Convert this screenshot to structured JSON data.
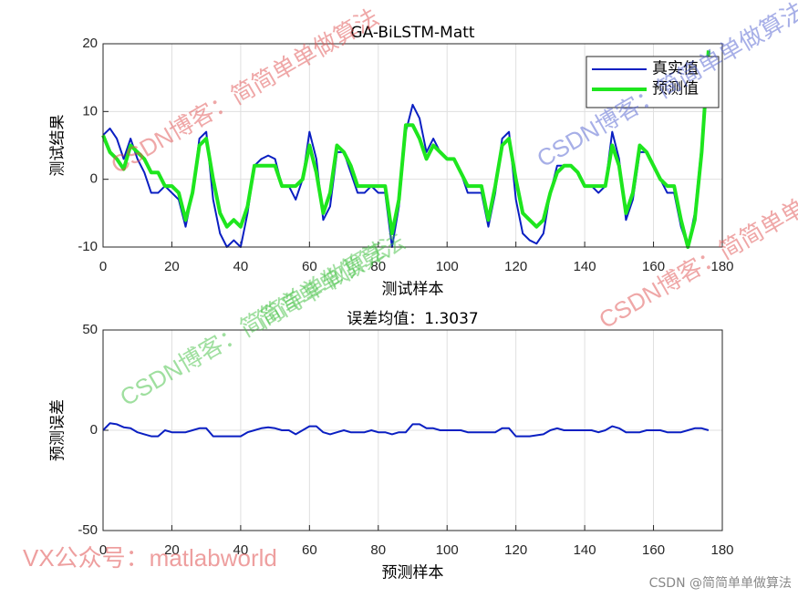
{
  "chart_data": [
    {
      "type": "line",
      "title": "GA-BiLSTM-Matt",
      "xlabel": "测试样本",
      "ylabel": "测试结果",
      "x": [
        0,
        2,
        4,
        6,
        8,
        10,
        12,
        14,
        16,
        18,
        20,
        22,
        24,
        26,
        28,
        30,
        32,
        34,
        36,
        38,
        40,
        42,
        44,
        46,
        48,
        50,
        52,
        54,
        56,
        58,
        60,
        62,
        64,
        66,
        68,
        70,
        72,
        74,
        76,
        78,
        80,
        82,
        84,
        86,
        88,
        90,
        92,
        94,
        96,
        98,
        100,
        102,
        104,
        106,
        108,
        110,
        112,
        114,
        116,
        118,
        120,
        122,
        124,
        126,
        128,
        130,
        132,
        134,
        136,
        138,
        140,
        142,
        144,
        146,
        148,
        150,
        152,
        154,
        156,
        158,
        160,
        162,
        164,
        166,
        168,
        170,
        172,
        174,
        176
      ],
      "series": [
        {
          "name": "真实值",
          "color": "#0a1fc2",
          "width": 2,
          "values": [
            6.5,
            7.5,
            6,
            3,
            6,
            3,
            1,
            -2,
            -2,
            -1,
            -2,
            -3,
            -7,
            -2,
            6,
            7,
            -3,
            -8,
            -10,
            -9,
            -10,
            -5,
            2,
            3,
            3.5,
            3,
            -1,
            -1,
            -3,
            0,
            7,
            3,
            -6,
            -4,
            4,
            4,
            1,
            -2,
            -2,
            -1,
            -2,
            -2,
            -10,
            -4,
            7,
            11,
            9,
            4,
            6,
            4,
            3,
            3,
            1,
            -2,
            -2,
            -2,
            -7,
            -2,
            6,
            7,
            -3,
            -8,
            -9,
            -9.5,
            -8,
            -2,
            2,
            2,
            2,
            1,
            -1,
            -1,
            -2,
            -1,
            7,
            3,
            -6,
            -3,
            4,
            4,
            2,
            0,
            -2,
            -2,
            -7,
            -10,
            -5,
            5,
            19
          ]
        },
        {
          "name": "预测值",
          "color": "#1ee61e",
          "width": 4,
          "values": [
            6.5,
            4,
            3,
            1.5,
            5,
            4,
            3,
            1,
            1,
            -1,
            -1,
            -2,
            -6,
            -2,
            5,
            6,
            0,
            -5,
            -7,
            -6,
            -7,
            -4,
            2,
            2,
            2,
            2,
            -1,
            -1,
            -1,
            0,
            5,
            1,
            -5,
            -2,
            5,
            4,
            2,
            -1,
            -1,
            -1,
            -1,
            -1,
            -8,
            -3,
            8,
            8,
            6,
            3,
            5,
            4,
            3,
            3,
            1,
            -1,
            -1,
            -1,
            -6,
            -1,
            5,
            6,
            0,
            -5,
            -6,
            -7,
            -6,
            -2,
            1,
            2,
            2,
            1,
            -1,
            -1,
            -1,
            -1,
            5,
            2,
            -5,
            -2,
            5,
            4,
            2,
            0,
            -1,
            -1,
            -6,
            -10,
            -6,
            4,
            19
          ]
        }
      ],
      "xlim": [
        0,
        180
      ],
      "xticks": [
        0,
        20,
        40,
        60,
        80,
        100,
        120,
        140,
        160,
        180
      ],
      "ylim": [
        -10,
        20
      ],
      "yticks": [
        -10,
        0,
        10,
        20
      ],
      "grid": true,
      "legend": "upper right"
    },
    {
      "type": "line",
      "title": "误差均值：1.3037",
      "xlabel": "预测样本",
      "ylabel": "预测误差",
      "x": [
        0,
        2,
        4,
        6,
        8,
        10,
        12,
        14,
        16,
        18,
        20,
        22,
        24,
        26,
        28,
        30,
        32,
        34,
        36,
        38,
        40,
        42,
        44,
        46,
        48,
        50,
        52,
        54,
        56,
        58,
        60,
        62,
        64,
        66,
        68,
        70,
        72,
        74,
        76,
        78,
        80,
        82,
        84,
        86,
        88,
        90,
        92,
        94,
        96,
        98,
        100,
        102,
        104,
        106,
        108,
        110,
        112,
        114,
        116,
        118,
        120,
        122,
        124,
        126,
        128,
        130,
        132,
        134,
        136,
        138,
        140,
        142,
        144,
        146,
        148,
        150,
        152,
        154,
        156,
        158,
        160,
        162,
        164,
        166,
        168,
        170,
        172,
        174,
        176
      ],
      "series": [
        {
          "color": "#0a1fc2",
          "width": 2,
          "values": [
            0,
            3.5,
            3,
            1.5,
            1,
            -1,
            -2,
            -3,
            -3,
            0,
            -1,
            -1,
            -1,
            0,
            1,
            1,
            -3,
            -3,
            -3,
            -3,
            -3,
            -1,
            0,
            1,
            1.5,
            1,
            0,
            0,
            -2,
            0,
            2,
            2,
            -1,
            -2,
            -1,
            0,
            -1,
            -1,
            -1,
            0,
            -1,
            -1,
            -2,
            -1,
            -1,
            3,
            3,
            1,
            1,
            0,
            0,
            0,
            0,
            -1,
            -1,
            -1,
            -1,
            -1,
            1,
            1,
            -3,
            -3,
            -3,
            -2.5,
            -2,
            0,
            1,
            0,
            0,
            0,
            0,
            0,
            -1,
            0,
            2,
            1,
            -1,
            -1,
            -1,
            0,
            0,
            0,
            -1,
            -1,
            -1,
            0,
            1,
            1,
            0
          ]
        }
      ],
      "xlim": [
        0,
        180
      ],
      "xticks": [
        0,
        20,
        40,
        60,
        80,
        100,
        120,
        140,
        160,
        180
      ],
      "ylim": [
        -50,
        50
      ],
      "yticks": [
        -50,
        0,
        50
      ],
      "grid": true
    }
  ],
  "watermarks": [
    "CSDN博客：简简单单做算法",
    "CSDN博客：简简单单做算法",
    "CSDN博客：简简单单做算法",
    "简简单单做算法",
    "CSDN博客：简简单单做算法",
    "VX公众号：matlabworld",
    "CSDN @简简单单做算法"
  ]
}
